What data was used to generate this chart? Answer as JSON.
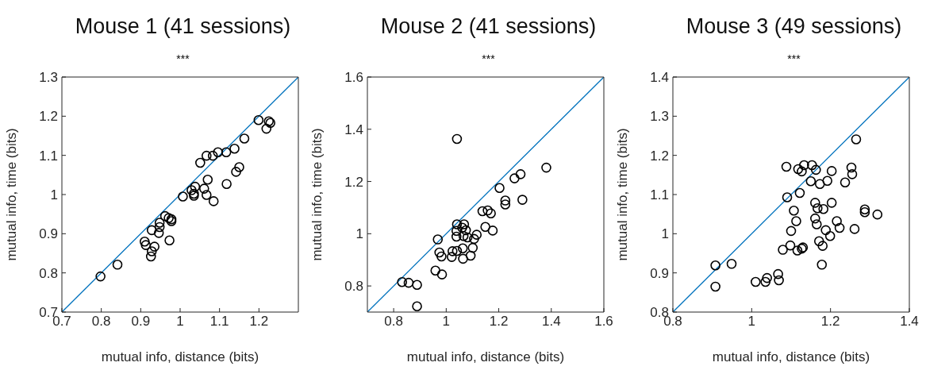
{
  "chart_data": [
    {
      "type": "scatter",
      "title": "Mouse 1 (41 sessions)",
      "annotations": [
        "***"
      ],
      "xlabel": "mutual info, distance (bits)",
      "ylabel": "mutual info, time (bits)",
      "xlim": [
        0.7,
        1.3
      ],
      "ylim": [
        0.7,
        1.3
      ],
      "xticks": [
        0.7,
        0.8,
        0.9,
        1,
        1.1,
        1.2
      ],
      "yticks": [
        0.7,
        0.8,
        0.9,
        1,
        1.1,
        1.2,
        1.3
      ],
      "grid": false,
      "marker": "circle",
      "series": [
        {
          "color": "#000000",
          "x": [
            0.798,
            0.841,
            0.91,
            0.913,
            0.928,
            0.926,
            0.935,
            0.928,
            0.946,
            0.948,
            0.948,
            0.962,
            0.971,
            0.978,
            0.978,
            0.973,
            1.007,
            1.029,
            1.038,
            1.035,
            1.035,
            1.061,
            1.07,
            1.067,
            1.085,
            1.118,
            1.142,
            1.15,
            1.051,
            1.067,
            1.083,
            1.096,
            1.117,
            1.138,
            1.163,
            1.199,
            1.219,
            1.225,
            1.229
          ],
          "values": [
            0.791,
            0.821,
            0.88,
            0.871,
            0.855,
            0.842,
            0.867,
            0.909,
            0.902,
            0.917,
            0.928,
            0.945,
            0.94,
            0.937,
            0.932,
            0.883,
            0.995,
            1.011,
            1.02,
            1.002,
            0.997,
            1.015,
            1.038,
            0.999,
            0.983,
            1.027,
            1.058,
            1.07,
            1.081,
            1.099,
            1.099,
            1.108,
            1.108,
            1.117,
            1.143,
            1.19,
            1.168,
            1.187,
            1.183
          ]
        },
        {
          "type": "line",
          "color": "#0072bd",
          "marker": "none",
          "x": [
            0.7,
            1.3
          ],
          "values": [
            0.7,
            1.3
          ]
        }
      ]
    },
    {
      "type": "scatter",
      "title": "Mouse 2 (41 sessions)",
      "annotations": [
        "***"
      ],
      "xlabel": "mutual info, distance (bits)",
      "ylabel": "mutual info, time (bits)",
      "xlim": [
        0.7,
        1.6
      ],
      "ylim": [
        0.7,
        1.6
      ],
      "xticks": [
        0.8,
        1,
        1.2,
        1.4,
        1.6
      ],
      "yticks": [
        0.8,
        1,
        1.2,
        1.4,
        1.6
      ],
      "grid": false,
      "marker": "circle",
      "series": [
        {
          "color": "#000000",
          "x": [
            1.041,
            1.381,
            1.283,
            1.26,
            1.203,
            1.225,
            1.225,
            1.29,
            1.138,
            1.158,
            1.17,
            1.149,
            1.177,
            1.041,
            1.068,
            1.061,
            1.039,
            1.075,
            1.039,
            1.066,
            1.081,
            1.116,
            1.106,
            0.968,
            1.101,
            1.024,
            1.041,
            1.063,
            0.974,
            0.982,
            1.021,
            1.064,
            1.093,
            0.959,
            0.984,
            0.832,
            0.857,
            0.889,
            0.889
          ],
          "values": [
            1.363,
            1.253,
            1.228,
            1.212,
            1.175,
            1.127,
            1.112,
            1.13,
            1.086,
            1.089,
            1.078,
            1.026,
            1.012,
            1.036,
            1.036,
            1.023,
            1.011,
            1.013,
            0.989,
            0.991,
            0.986,
            0.996,
            0.98,
            0.978,
            0.946,
            0.933,
            0.934,
            0.944,
            0.928,
            0.913,
            0.911,
            0.904,
            0.916,
            0.859,
            0.844,
            0.815,
            0.812,
            0.804,
            0.722
          ]
        },
        {
          "type": "line",
          "color": "#0072bd",
          "marker": "none",
          "x": [
            0.7,
            1.6
          ],
          "values": [
            0.7,
            1.6
          ]
        }
      ]
    },
    {
      "type": "scatter",
      "title": "Mouse 3 (49 sessions)",
      "annotations": [
        "***"
      ],
      "xlabel": "mutual info, distance (bits)",
      "ylabel": "mutual info, time (bits)",
      "xlim": [
        0.8,
        1.4
      ],
      "ylim": [
        0.8,
        1.4
      ],
      "xticks": [
        0.8,
        1,
        1.2,
        1.4
      ],
      "yticks": [
        0.8,
        0.9,
        1,
        1.1,
        1.2,
        1.3,
        1.4
      ],
      "grid": false,
      "marker": "circle",
      "series": [
        {
          "color": "#000000",
          "x": [
            1.265,
            1.088,
            1.118,
            1.127,
            1.133,
            1.153,
            1.163,
            1.203,
            1.253,
            1.255,
            1.15,
            1.173,
            1.192,
            1.237,
            1.09,
            1.122,
            1.161,
            1.167,
            1.182,
            1.203,
            1.107,
            1.113,
            1.161,
            1.165,
            1.216,
            1.223,
            1.261,
            1.287,
            1.287,
            1.319,
            1.1,
            1.188,
            1.199,
            1.171,
            1.18,
            1.098,
            1.079,
            1.116,
            1.127,
            1.13,
            1.178,
            0.908,
            0.949,
            0.908,
            1.01,
            1.035,
            1.039,
            1.067,
            1.069
          ],
          "values": [
            1.241,
            1.171,
            1.165,
            1.159,
            1.175,
            1.175,
            1.163,
            1.16,
            1.169,
            1.152,
            1.134,
            1.127,
            1.135,
            1.131,
            1.093,
            1.104,
            1.079,
            1.065,
            1.063,
            1.079,
            1.059,
            1.032,
            1.039,
            1.024,
            1.032,
            1.015,
            1.012,
            1.062,
            1.055,
            1.049,
            1.007,
            1.009,
            0.994,
            0.981,
            0.969,
            0.97,
            0.959,
            0.957,
            0.962,
            0.965,
            0.921,
            0.919,
            0.923,
            0.865,
            0.877,
            0.877,
            0.887,
            0.897,
            0.881
          ]
        },
        {
          "type": "line",
          "color": "#0072bd",
          "marker": "none",
          "x": [
            0.8,
            1.4
          ],
          "values": [
            0.8,
            1.4
          ]
        }
      ]
    }
  ]
}
